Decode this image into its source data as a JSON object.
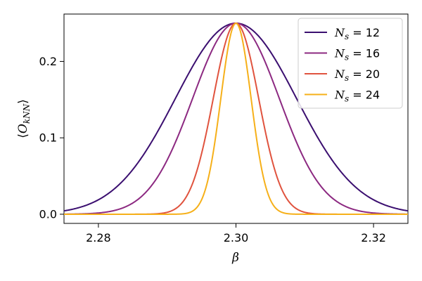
{
  "chart_data": {
    "type": "line",
    "xlabel": "β",
    "ylabel": "⟨O_kNN⟩",
    "xlim": [
      2.275,
      2.325
    ],
    "ylim": [
      -0.012,
      0.262
    ],
    "xticks": [
      2.28,
      2.3,
      2.32
    ],
    "xtick_labels": [
      "2.28",
      "2.30",
      "2.32"
    ],
    "yticks": [
      0.0,
      0.1,
      0.2
    ],
    "ytick_labels": [
      "0.0",
      "0.1",
      "0.2"
    ],
    "grid": false,
    "legend_position": "top-right",
    "peak_x": 2.3,
    "peak_y": 0.25,
    "series": [
      {
        "name": "N_s = 12",
        "legend_ns": "12",
        "color": "#3b0f70",
        "sigma": 0.0088
      },
      {
        "name": "N_s = 16",
        "legend_ns": "16",
        "color": "#8c2981",
        "sigma": 0.0063
      },
      {
        "name": "N_s = 20",
        "legend_ns": "20",
        "color": "#e0533e",
        "sigma": 0.0033
      },
      {
        "name": "N_s = 24",
        "legend_ns": "24",
        "color": "#f6b019",
        "sigma": 0.0022
      }
    ]
  }
}
